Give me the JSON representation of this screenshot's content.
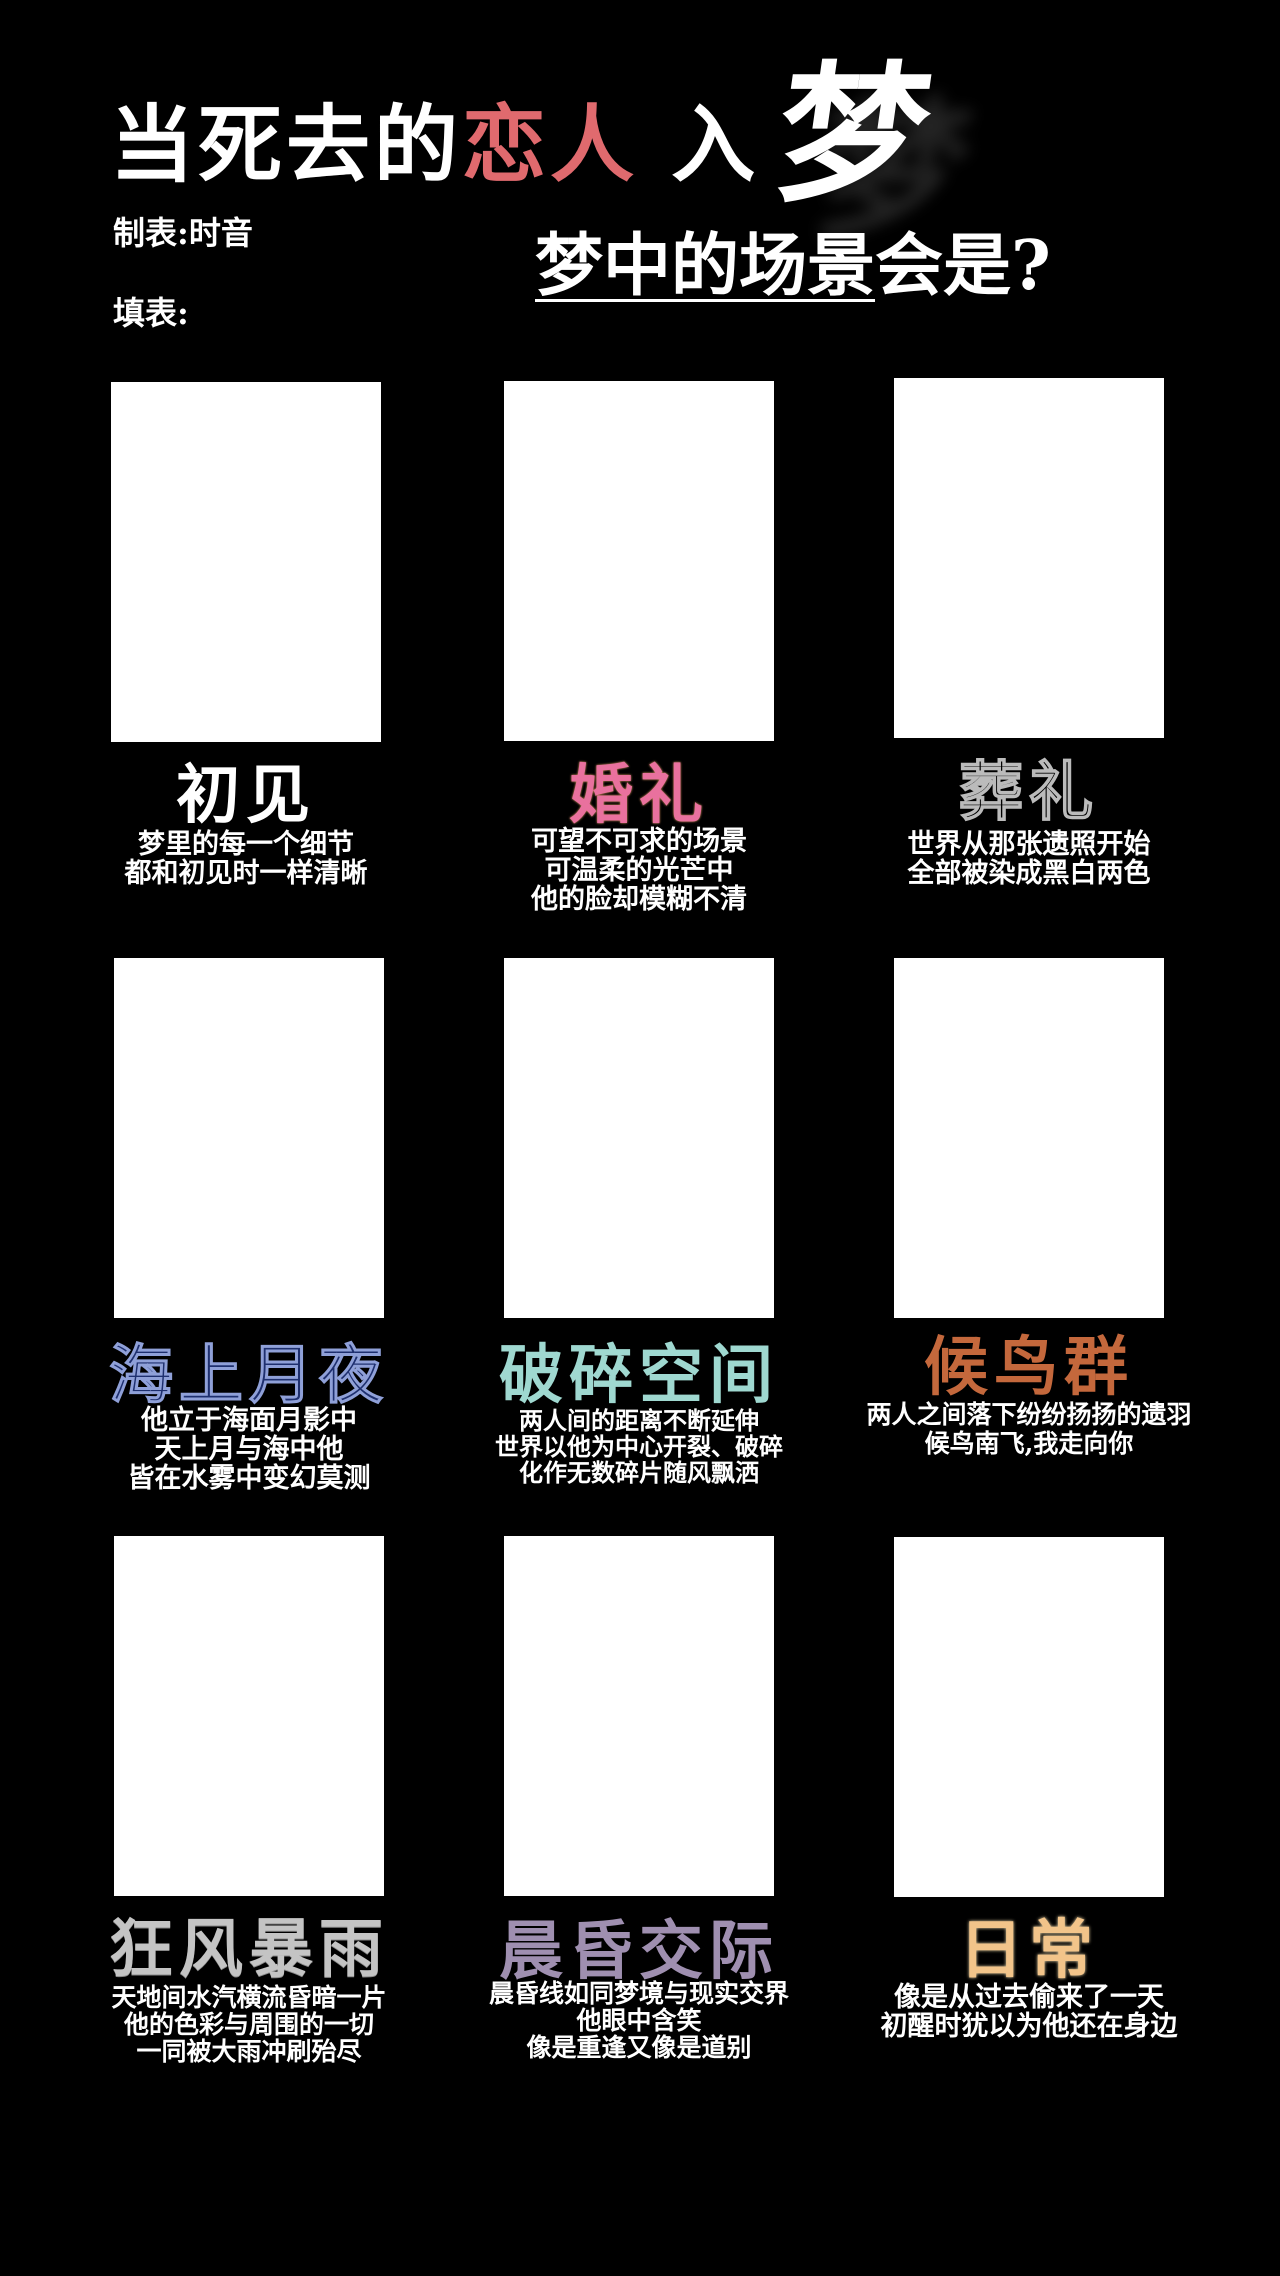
{
  "header": {
    "title_main": "当死去的",
    "title_accent": "恋人",
    "title_tail": "入",
    "title_dream": "梦",
    "author": "制表:时音",
    "filler_label": "填表:",
    "subtitle_underlined": "梦中的场景",
    "subtitle_tail": "会是?"
  },
  "cells": [
    {
      "title": "初见",
      "color": "#ffffff",
      "lines": [
        "梦里的每一个细节",
        "都和初见时一样清晰"
      ]
    },
    {
      "title": "婚礼",
      "color": "#e9719e",
      "lines": [
        "可望不可求的场景",
        "可温柔的光芒中",
        "他的脸却模糊不清"
      ]
    },
    {
      "title": "葬礼",
      "color": "#bbbbbb",
      "lines": [
        "世界从那张遗照开始",
        "全部被染成黑白两色"
      ]
    },
    {
      "title": "海上月夜",
      "color": "#1e2f6e",
      "lines": [
        "他立于海面月影中",
        "天上月与海中他",
        "皆在水雾中变幻莫测"
      ]
    },
    {
      "title": "破碎空间",
      "color": "#9fd8d0",
      "lines": [
        "两人间的距离不断延伸",
        "世界以他为中心开裂、破碎",
        "化作无数碎片随风飘洒"
      ]
    },
    {
      "title": "候鸟群",
      "color": "#c4683c",
      "lines": [
        "两人之间落下纷纷扬扬的遗羽",
        "候鸟南飞,我走向你"
      ]
    },
    {
      "title": "狂风暴雨",
      "color": "#c4c4c4",
      "lines": [
        "天地间水汽横流昏暗一片",
        "他的色彩与周围的一切",
        "一同被大雨冲刷殆尽"
      ]
    },
    {
      "title": "晨昏交际",
      "color": "#9f8fb0",
      "lines": [
        "晨昏线如同梦境与现实交界",
        "他眼中含笑",
        "像是重逢又像是道别"
      ]
    },
    {
      "title": "日常",
      "color": "#f2c48a",
      "lines": [
        "像是从过去偷来了一天",
        "初醒时犹以为他还在身边"
      ]
    }
  ]
}
